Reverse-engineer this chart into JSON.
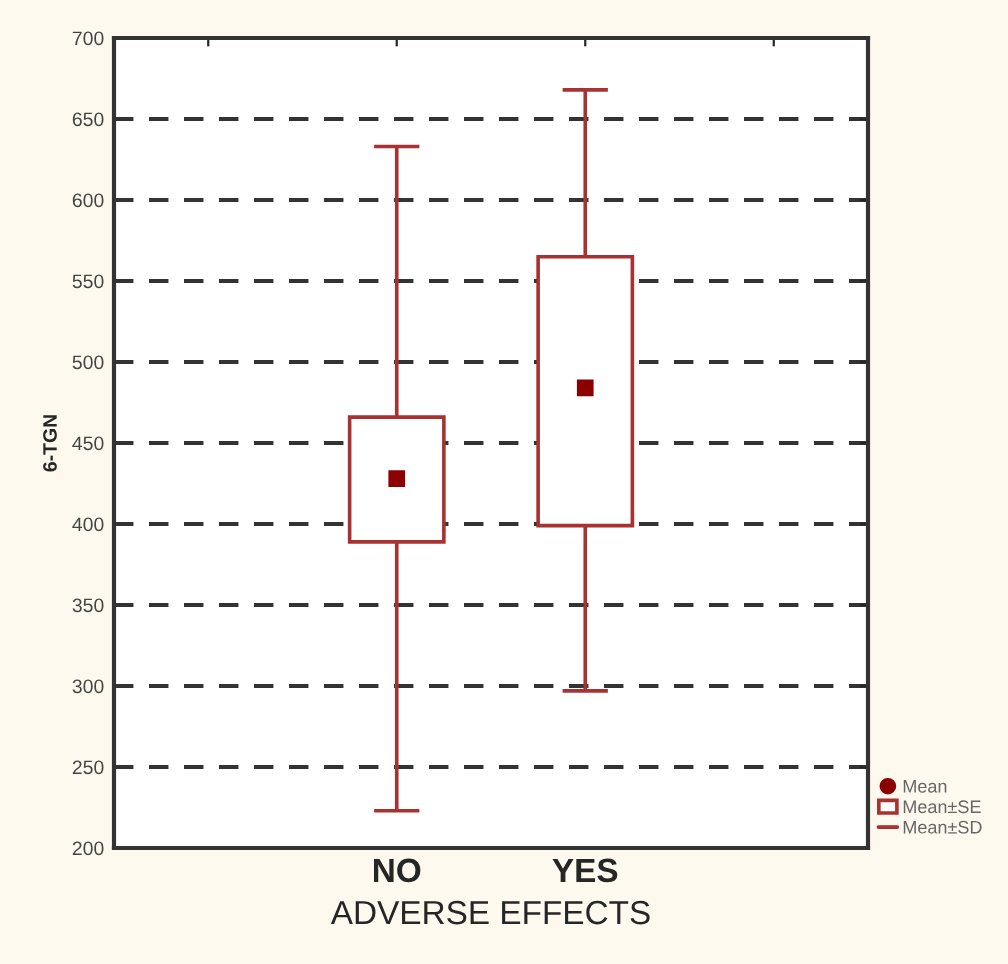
{
  "chart_data": {
    "type": "box",
    "xlabel": "ADVERSE EFFECTS",
    "ylabel": "6-TGN",
    "categories": [
      null,
      "NO",
      "YES",
      null
    ],
    "boxes": [
      null,
      {
        "low": 223,
        "q1": 389,
        "mean": 428,
        "q3": 466,
        "high": 633
      },
      {
        "low": 297,
        "q1": 399,
        "mean": 484,
        "q3": 565,
        "high": 668
      },
      null
    ],
    "color": "#a83232",
    "ylim": [
      200,
      700
    ],
    "yticks": [
      200,
      250,
      300,
      350,
      400,
      450,
      500,
      550,
      600,
      650,
      700
    ],
    "grid": "y",
    "line_style": "dashed",
    "annotations": [
      "Mean",
      "Mean±SE",
      "Mean±SD"
    ]
  }
}
